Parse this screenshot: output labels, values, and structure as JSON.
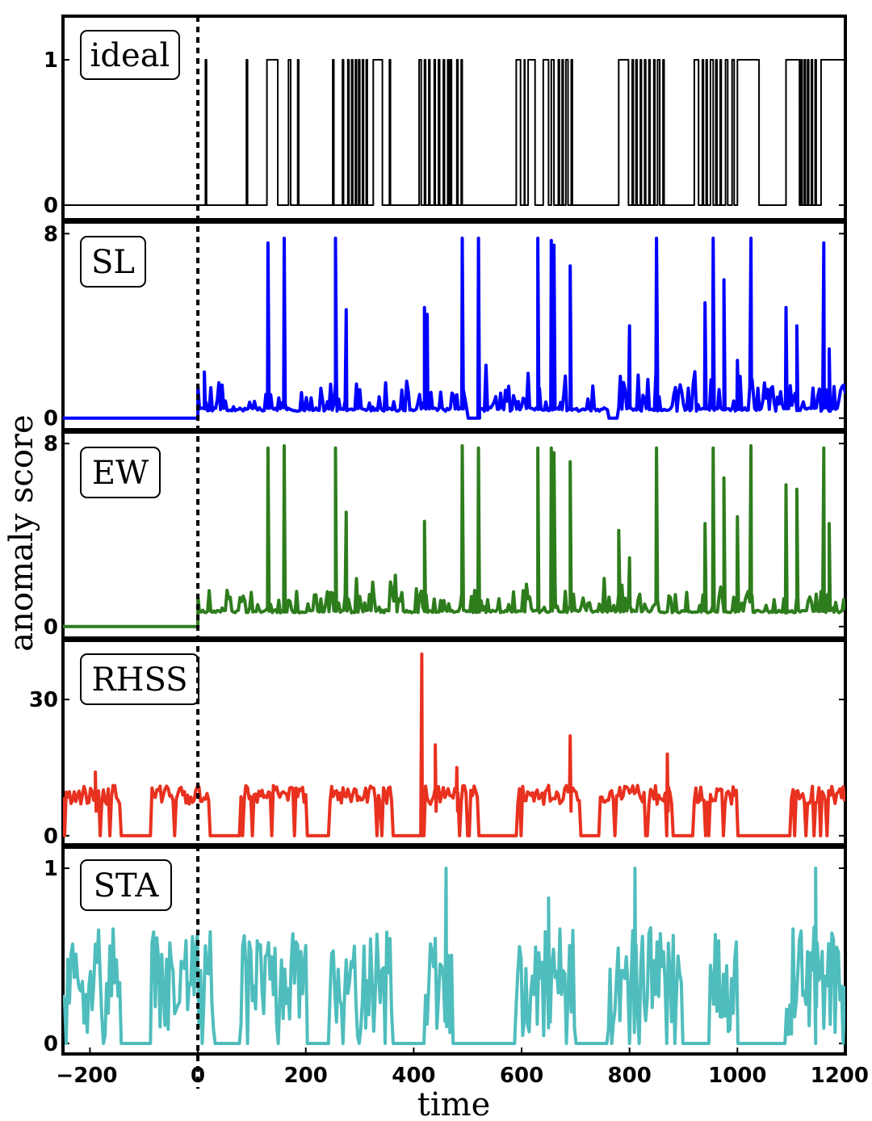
{
  "chart_data": {
    "type": "line",
    "xlabel": "time",
    "ylabel": "anomaly score",
    "xlim": [
      -250,
      1200
    ],
    "xticks": [
      {
        "value": -200,
        "label": "−200"
      },
      {
        "value": 0,
        "label": "0"
      },
      {
        "value": 200,
        "label": "200"
      },
      {
        "value": 400,
        "label": "400"
      },
      {
        "value": 600,
        "label": "600"
      },
      {
        "value": 800,
        "label": "800"
      },
      {
        "value": 1000,
        "label": "1000"
      },
      {
        "value": 1200,
        "label": "1200"
      }
    ],
    "event_marker": {
      "x": 0,
      "style": "dotted"
    },
    "panels": [
      {
        "name": "ideal",
        "label": "ideal",
        "color": "#000000",
        "ylim": [
          -0.1,
          1.3
        ],
        "yticks": [
          {
            "value": 0,
            "label": "0"
          },
          {
            "value": 1,
            "label": "1"
          }
        ],
        "kind": "binary",
        "segments": [
          [
            14,
            16
          ],
          [
            90,
            92
          ],
          [
            128,
            148
          ],
          [
            168,
            172
          ],
          [
            185,
            187
          ],
          [
            250,
            252
          ],
          [
            268,
            270
          ],
          [
            278,
            280
          ],
          [
            285,
            287
          ],
          [
            292,
            294
          ],
          [
            298,
            300
          ],
          [
            305,
            307
          ],
          [
            312,
            314
          ],
          [
            325,
            342
          ],
          [
            355,
            357
          ],
          [
            410,
            414
          ],
          [
            420,
            422
          ],
          [
            428,
            430
          ],
          [
            438,
            440
          ],
          [
            446,
            448
          ],
          [
            455,
            457
          ],
          [
            463,
            465
          ],
          [
            468,
            470
          ],
          [
            480,
            482
          ],
          [
            488,
            490
          ],
          [
            590,
            598
          ],
          [
            605,
            606
          ],
          [
            612,
            625
          ],
          [
            640,
            650
          ],
          [
            655,
            660
          ],
          [
            668,
            670
          ],
          [
            675,
            677
          ],
          [
            682,
            686
          ],
          [
            692,
            694
          ],
          [
            780,
            798
          ],
          [
            805,
            807
          ],
          [
            812,
            814
          ],
          [
            820,
            822
          ],
          [
            828,
            830
          ],
          [
            836,
            838
          ],
          [
            845,
            847
          ],
          [
            852,
            856
          ],
          [
            862,
            864
          ],
          [
            920,
            928
          ],
          [
            935,
            937
          ],
          [
            942,
            944
          ],
          [
            950,
            955
          ],
          [
            960,
            962
          ],
          [
            968,
            970
          ],
          [
            978,
            982
          ],
          [
            990,
            994
          ],
          [
            1000,
            1040
          ],
          [
            1090,
            1115
          ],
          [
            1118,
            1120
          ],
          [
            1124,
            1126
          ],
          [
            1130,
            1132
          ],
          [
            1137,
            1139
          ],
          [
            1144,
            1146
          ],
          [
            1155,
            1200
          ]
        ]
      },
      {
        "name": "SL",
        "label": "SL",
        "color": "#0000ff",
        "ylim": [
          -0.5,
          8.5
        ],
        "yticks": [
          {
            "value": 0,
            "label": "0"
          },
          {
            "value": 8,
            "label": "8"
          }
        ],
        "kind": "score",
        "x_start": 0,
        "active_value": 0.3,
        "active_intervals": [
          [
            0,
            500
          ],
          [
            520,
            760
          ],
          [
            780,
            1200
          ]
        ],
        "noise": 0.5,
        "peaks": [
          [
            12,
            2.0
          ],
          [
            130,
            7.6
          ],
          [
            160,
            7.8
          ],
          [
            255,
            7.8
          ],
          [
            275,
            4.7
          ],
          [
            420,
            4.8
          ],
          [
            425,
            4.5
          ],
          [
            490,
            7.8
          ],
          [
            520,
            7.8
          ],
          [
            630,
            7.8
          ],
          [
            655,
            7.7
          ],
          [
            660,
            7.5
          ],
          [
            690,
            6.6
          ],
          [
            800,
            4.0
          ],
          [
            850,
            7.8
          ],
          [
            940,
            5.0
          ],
          [
            955,
            7.8
          ],
          [
            975,
            6.0
          ],
          [
            1000,
            2.5
          ],
          [
            1025,
            7.8
          ],
          [
            1090,
            4.8
          ],
          [
            1110,
            4.0
          ],
          [
            1160,
            7.6
          ],
          [
            1170,
            3.0
          ]
        ]
      },
      {
        "name": "EW",
        "label": "EW",
        "color": "#2e7d1d",
        "ylim": [
          -0.5,
          8.5
        ],
        "yticks": [
          {
            "value": 0,
            "label": "0"
          },
          {
            "value": 8,
            "label": "8"
          }
        ],
        "kind": "score",
        "x_start": 0,
        "active_value": 0.6,
        "active_intervals": [
          [
            0,
            1200
          ]
        ],
        "noise": 0.4,
        "peaks": [
          [
            130,
            7.8
          ],
          [
            160,
            7.9
          ],
          [
            255,
            7.8
          ],
          [
            275,
            5.0
          ],
          [
            420,
            4.6
          ],
          [
            490,
            7.9
          ],
          [
            520,
            7.8
          ],
          [
            630,
            7.8
          ],
          [
            655,
            7.8
          ],
          [
            660,
            7.6
          ],
          [
            690,
            7.2
          ],
          [
            780,
            4.2
          ],
          [
            800,
            3.0
          ],
          [
            850,
            7.8
          ],
          [
            940,
            4.5
          ],
          [
            955,
            7.8
          ],
          [
            975,
            6.5
          ],
          [
            1000,
            4.8
          ],
          [
            1025,
            7.9
          ],
          [
            1090,
            6.2
          ],
          [
            1110,
            6.0
          ],
          [
            1160,
            7.8
          ],
          [
            1170,
            4.5
          ]
        ]
      },
      {
        "name": "RHSS",
        "label": "RHSS",
        "color": "#e8311f",
        "ylim": [
          -2,
          43
        ],
        "yticks": [
          {
            "value": 0,
            "label": "0"
          },
          {
            "value": 30,
            "label": "30"
          }
        ],
        "kind": "block",
        "base": 9,
        "noise": 3,
        "active_intervals": [
          [
            -250,
            -145
          ],
          [
            -85,
            20
          ],
          [
            80,
            200
          ],
          [
            245,
            360
          ],
          [
            420,
            520
          ],
          [
            590,
            710
          ],
          [
            745,
            880
          ],
          [
            920,
            1000
          ],
          [
            1100,
            1200
          ]
        ],
        "peaks": [
          [
            -190,
            14
          ],
          [
            415,
            40
          ],
          [
            440,
            20
          ],
          [
            480,
            15
          ],
          [
            690,
            22
          ],
          [
            870,
            18
          ]
        ]
      },
      {
        "name": "STA",
        "label": "STA",
        "color": "#4fbdbd",
        "ylim": [
          -0.06,
          1.12
        ],
        "yticks": [
          {
            "value": 0,
            "label": "0"
          },
          {
            "value": 1,
            "label": "1"
          }
        ],
        "kind": "block",
        "base": 0.35,
        "noise": 0.45,
        "active_intervals": [
          [
            -250,
            -145
          ],
          [
            -85,
            30
          ],
          [
            80,
            200
          ],
          [
            245,
            360
          ],
          [
            420,
            470
          ],
          [
            590,
            700
          ],
          [
            760,
            900
          ],
          [
            950,
            1000
          ],
          [
            1090,
            1200
          ]
        ],
        "peaks": [
          [
            460,
            1.0
          ],
          [
            650,
            0.83
          ],
          [
            810,
            1.0
          ],
          [
            1145,
            1.0
          ]
        ]
      }
    ]
  }
}
